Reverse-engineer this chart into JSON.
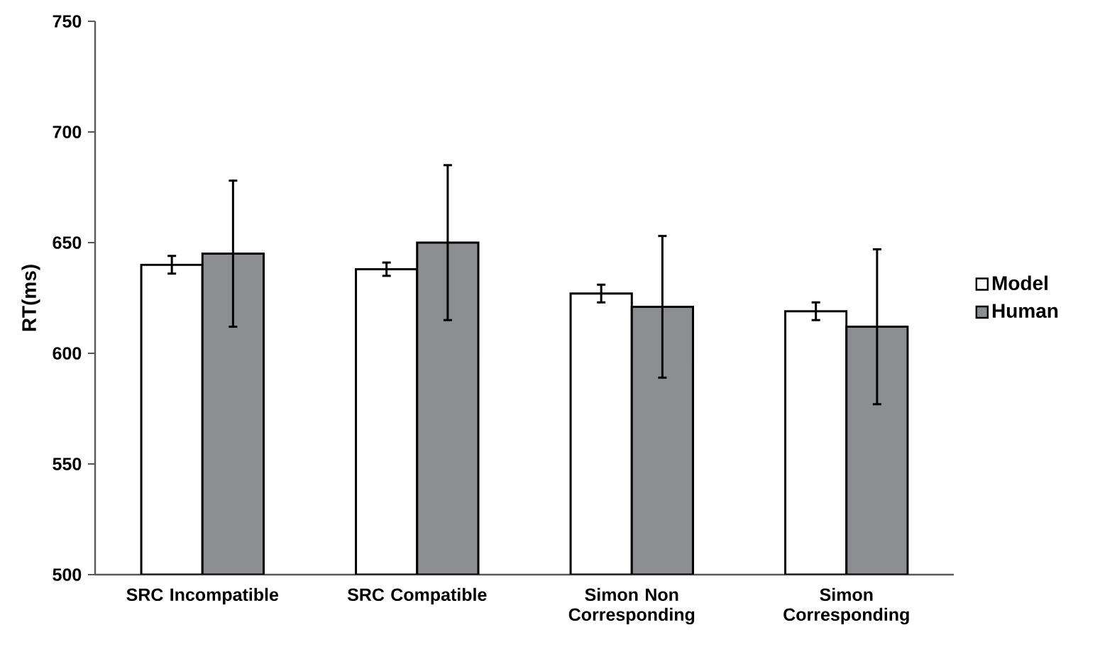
{
  "chart_data": {
    "type": "bar",
    "ylabel": "RT(ms)",
    "categories": [
      "SRC Incompatible",
      "SRC Compatible",
      "Simon Non Corresponding",
      "Simon Corresponding"
    ],
    "series": [
      {
        "name": "Model",
        "color": "#ffffff",
        "values": [
          640,
          638,
          627,
          619
        ],
        "errors": [
          4,
          3,
          4,
          4
        ]
      },
      {
        "name": "Human",
        "color": "#8c8d90",
        "values": [
          645,
          650,
          621,
          612
        ],
        "errors": [
          33,
          35,
          32,
          35
        ]
      }
    ],
    "ylim": [
      500,
      750
    ],
    "yticks": [
      500,
      550,
      600,
      650,
      700,
      750
    ],
    "legend": "right"
  }
}
